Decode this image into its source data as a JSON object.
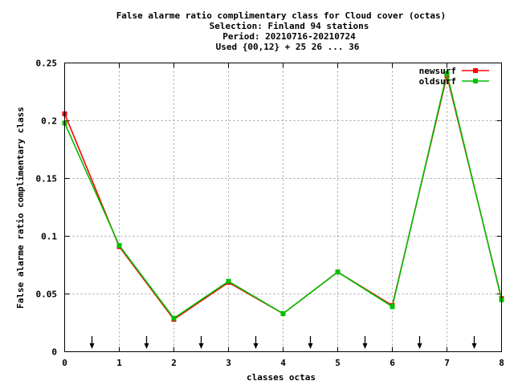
{
  "chart_data": {
    "type": "line",
    "title_lines": [
      "False alarme ratio complimentary class  for Cloud cover (octas)",
      "Selection: Finland     94 stations",
      "Period: 20210716-20210724",
      "Used {00,12} + 25 26 ... 36"
    ],
    "xlabel": "classes octas",
    "ylabel": "False alarme ratio complimentary class",
    "xlim": [
      0,
      8
    ],
    "ylim": [
      0,
      0.25
    ],
    "x_ticks": [
      "0",
      "1",
      "2",
      "3",
      "4",
      "5",
      "6",
      "7",
      "8"
    ],
    "y_ticks": [
      "0",
      "0.05",
      "0.1",
      "0.15",
      "0.2",
      "0.25"
    ],
    "x": [
      0,
      1,
      2,
      3,
      4,
      5,
      6,
      7,
      8
    ],
    "series": [
      {
        "name": "newsurf",
        "color": "#ff0000",
        "values": [
          0.206,
          0.091,
          0.028,
          0.06,
          0.033,
          0.069,
          0.04,
          0.239,
          0.046
        ]
      },
      {
        "name": "oldsurf",
        "color": "#00c000",
        "values": [
          0.198,
          0.092,
          0.029,
          0.061,
          0.033,
          0.069,
          0.039,
          0.241,
          0.045
        ]
      }
    ],
    "arrow_marks_x": [
      0.5,
      1.5,
      2.5,
      3.5,
      4.5,
      5.5,
      6.5,
      7.5
    ],
    "grid": true,
    "legend_position": "top-right"
  }
}
